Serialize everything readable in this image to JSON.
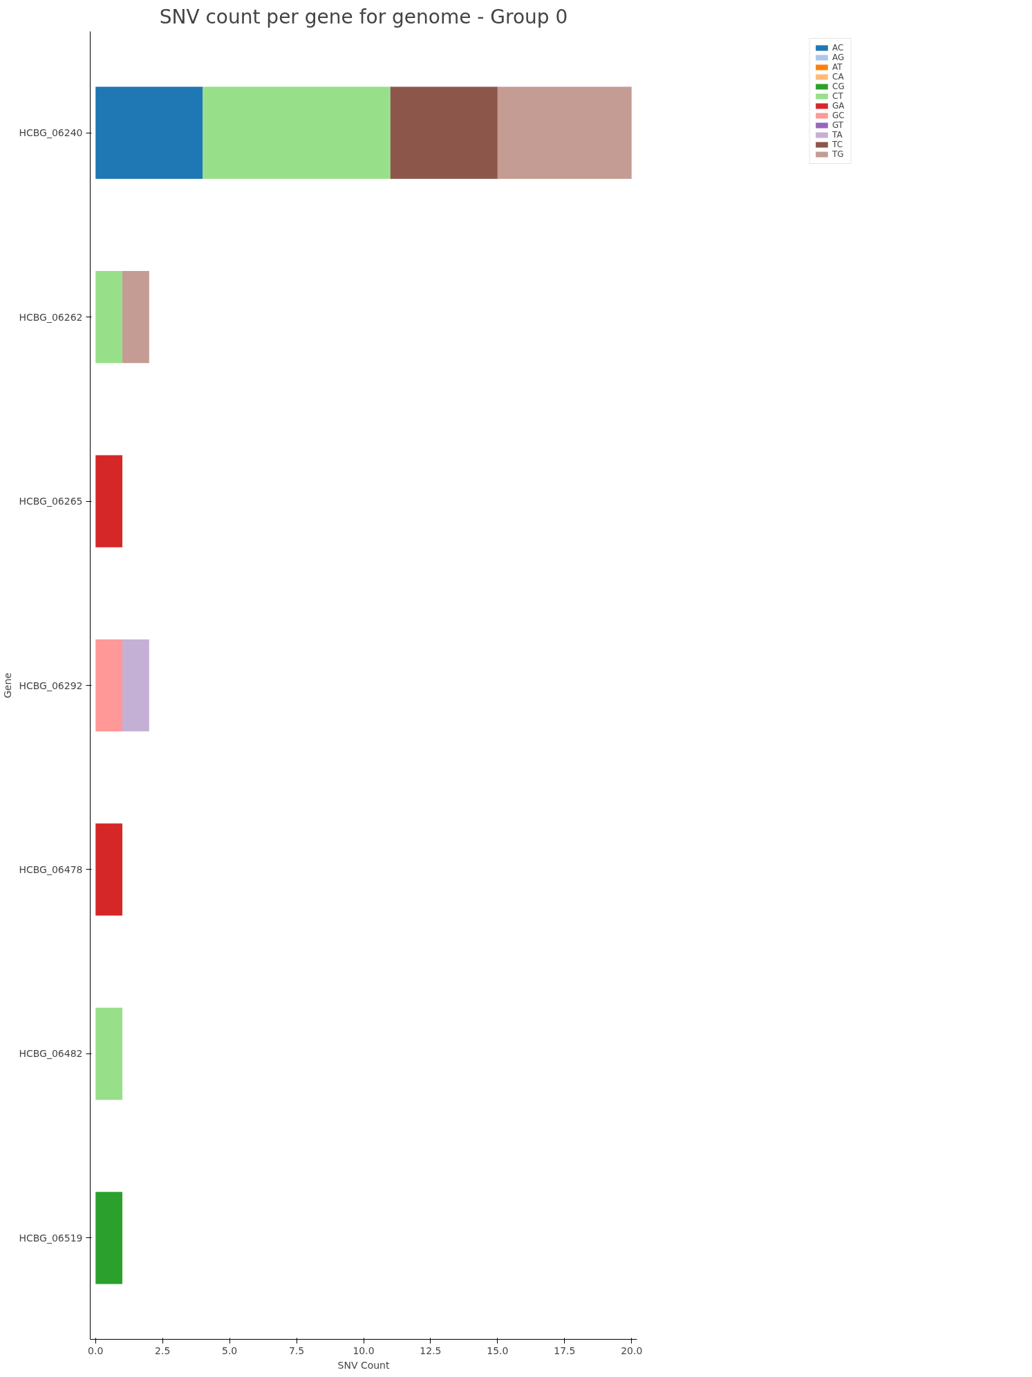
{
  "chart_data": {
    "type": "bar",
    "orientation": "horizontal",
    "stacked": true,
    "title": "SNV count per gene for genome - Group 0",
    "xlabel": "SNV Count",
    "ylabel": "Gene",
    "categories": [
      "HCBG_06240",
      "HCBG_06262",
      "HCBG_06265",
      "HCBG_06292",
      "HCBG_06478",
      "HCBG_06482",
      "HCBG_06519"
    ],
    "series": [
      {
        "name": "AC",
        "color": "#1f77b4",
        "values": [
          4,
          0,
          0,
          0,
          0,
          0,
          0
        ]
      },
      {
        "name": "AG",
        "color": "#aec7e8",
        "values": [
          0,
          0,
          0,
          0,
          0,
          0,
          0
        ]
      },
      {
        "name": "AT",
        "color": "#ff7f0e",
        "values": [
          0,
          0,
          0,
          0,
          0,
          0,
          0
        ]
      },
      {
        "name": "CA",
        "color": "#ffbb78",
        "values": [
          0,
          0,
          0,
          0,
          0,
          0,
          0
        ]
      },
      {
        "name": "CG",
        "color": "#2ca02c",
        "values": [
          0,
          0,
          0,
          0,
          0,
          0,
          1
        ]
      },
      {
        "name": "CT",
        "color": "#98df8a",
        "values": [
          7,
          1,
          0,
          0,
          0,
          1,
          0
        ]
      },
      {
        "name": "GA",
        "color": "#d62728",
        "values": [
          0,
          0,
          1,
          0,
          1,
          0,
          0
        ]
      },
      {
        "name": "GC",
        "color": "#ff9896",
        "values": [
          0,
          0,
          0,
          1,
          0,
          0,
          0
        ]
      },
      {
        "name": "GT",
        "color": "#9467bd",
        "values": [
          0,
          0,
          0,
          0,
          0,
          0,
          0
        ]
      },
      {
        "name": "TA",
        "color": "#c5b0d5",
        "values": [
          0,
          0,
          0,
          1,
          0,
          0,
          0
        ]
      },
      {
        "name": "TC",
        "color": "#8c564b",
        "values": [
          4,
          0,
          0,
          0,
          0,
          0,
          0
        ]
      },
      {
        "name": "TG",
        "color": "#c49c94",
        "values": [
          5,
          1,
          0,
          0,
          0,
          0,
          0
        ]
      }
    ],
    "xlim": [
      -0.2,
      20.2
    ],
    "xticks": [
      {
        "value": 0,
        "label": "0.0"
      },
      {
        "value": 2.5,
        "label": "2.5"
      },
      {
        "value": 5,
        "label": "5.0"
      },
      {
        "value": 7.5,
        "label": "7.5"
      },
      {
        "value": 10,
        "label": "10.0"
      },
      {
        "value": 12.5,
        "label": "12.5"
      },
      {
        "value": 15,
        "label": "15.0"
      },
      {
        "value": 17.5,
        "label": "17.5"
      },
      {
        "value": 20,
        "label": "20.0"
      }
    ],
    "legend": "top right",
    "grid": false
  }
}
